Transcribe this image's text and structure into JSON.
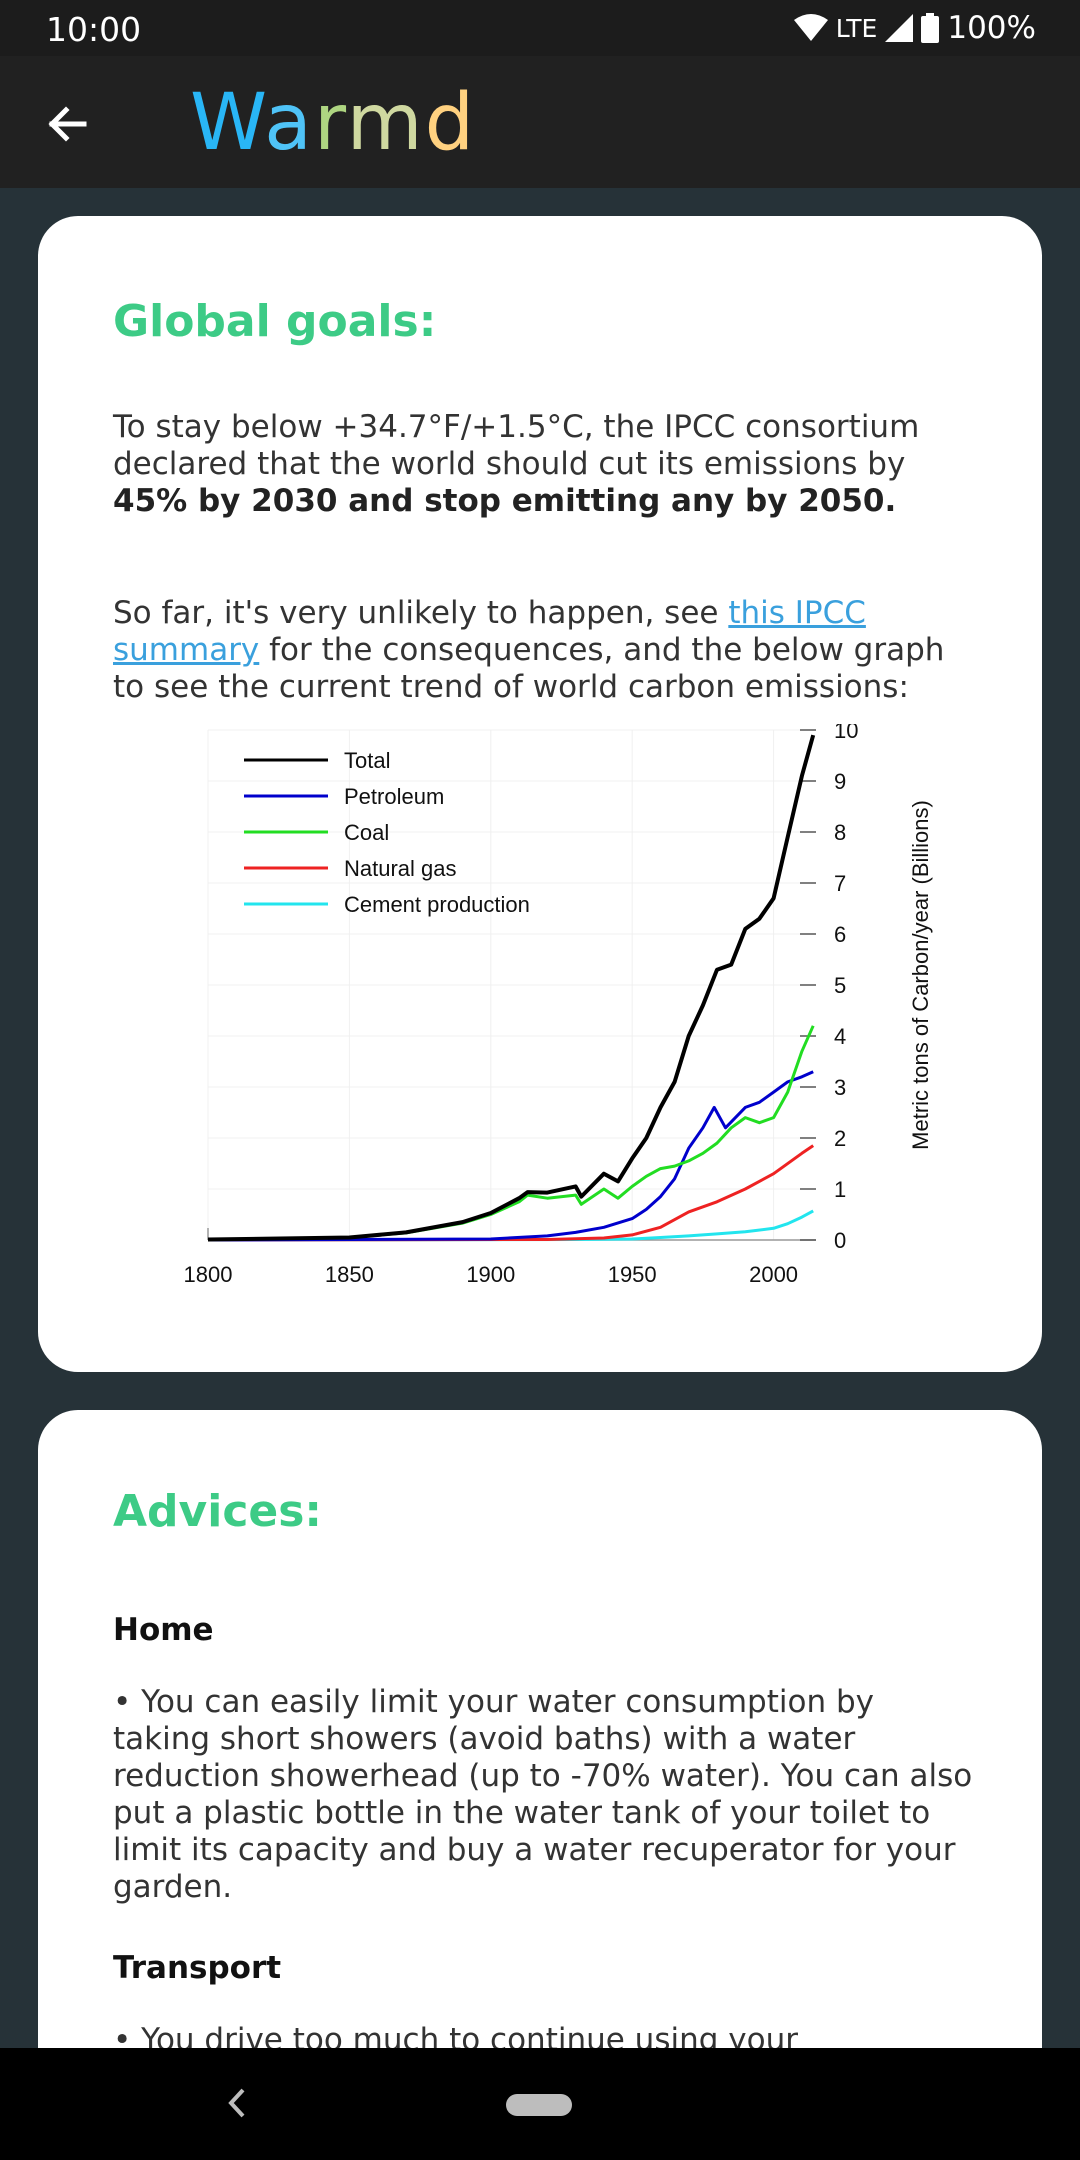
{
  "status_bar": {
    "time": "10:00",
    "network": "LTE",
    "battery": "100%"
  },
  "app_bar": {
    "title_letters": [
      "W",
      "a",
      "r",
      "m",
      "d"
    ],
    "title_colors": [
      "#29b6f6",
      "#4fc3f7",
      "#aed581",
      "#cfd8a0",
      "#ffd180"
    ]
  },
  "goals": {
    "heading": "Global goals:",
    "para1_text": "To stay below +34.7°F/+1.5°C, the IPCC consortium declared that the world should cut its emissions by ",
    "para1_bold": "45% by 2030 and stop emitting any by 2050.",
    "para2_pre": "So far, it's very unlikely to happen, see ",
    "para2_link": "this IPCC summary",
    "para2_post": " for the consequences, and the below graph to see the current trend of world carbon emissions:"
  },
  "chart_data": {
    "type": "line",
    "ylabel": "Metric tons of Carbon/year (Billions)",
    "xlim": [
      1800,
      2015
    ],
    "ylim": [
      0,
      10
    ],
    "x_ticks": [
      1800,
      1850,
      1900,
      1950,
      2000
    ],
    "y_ticks": [
      0,
      1,
      2,
      3,
      4,
      5,
      6,
      7,
      8,
      9,
      10
    ],
    "legend_position": "top-left",
    "series": [
      {
        "name": "Total",
        "color": "#000000",
        "x": [
          1800,
          1850,
          1870,
          1890,
          1900,
          1910,
          1913,
          1920,
          1930,
          1932,
          1940,
          1945,
          1950,
          1955,
          1960,
          1965,
          1970,
          1975,
          1980,
          1985,
          1990,
          1995,
          2000,
          2005,
          2010,
          2014
        ],
        "y": [
          0.01,
          0.05,
          0.15,
          0.35,
          0.53,
          0.82,
          0.94,
          0.93,
          1.05,
          0.85,
          1.3,
          1.15,
          1.6,
          2.0,
          2.6,
          3.1,
          4.0,
          4.6,
          5.3,
          5.4,
          6.1,
          6.3,
          6.7,
          7.9,
          9.1,
          9.9
        ]
      },
      {
        "name": "Petroleum",
        "color": "#0000cc",
        "x": [
          1800,
          1900,
          1920,
          1930,
          1940,
          1950,
          1955,
          1960,
          1965,
          1970,
          1975,
          1979,
          1983,
          1990,
          1995,
          2000,
          2005,
          2010,
          2014
        ],
        "y": [
          0,
          0.02,
          0.08,
          0.15,
          0.25,
          0.42,
          0.6,
          0.85,
          1.2,
          1.8,
          2.2,
          2.6,
          2.2,
          2.6,
          2.7,
          2.9,
          3.1,
          3.2,
          3.3
        ]
      },
      {
        "name": "Coal",
        "color": "#22dd22",
        "x": [
          1800,
          1850,
          1870,
          1890,
          1900,
          1910,
          1913,
          1920,
          1930,
          1932,
          1940,
          1945,
          1950,
          1955,
          1960,
          1965,
          1970,
          1975,
          1980,
          1985,
          1990,
          1995,
          2000,
          2005,
          2010,
          2014
        ],
        "y": [
          0.01,
          0.05,
          0.14,
          0.33,
          0.5,
          0.75,
          0.88,
          0.82,
          0.88,
          0.7,
          1.0,
          0.82,
          1.05,
          1.25,
          1.4,
          1.45,
          1.55,
          1.7,
          1.9,
          2.2,
          2.4,
          2.3,
          2.4,
          2.9,
          3.7,
          4.2
        ]
      },
      {
        "name": "Natural gas",
        "color": "#ee2222",
        "x": [
          1800,
          1920,
          1940,
          1950,
          1960,
          1970,
          1980,
          1990,
          2000,
          2010,
          2014
        ],
        "y": [
          0,
          0.01,
          0.04,
          0.1,
          0.25,
          0.55,
          0.75,
          1.0,
          1.3,
          1.7,
          1.85
        ]
      },
      {
        "name": "Cement production",
        "color": "#22e5ee",
        "x": [
          1800,
          1930,
          1950,
          1960,
          1970,
          1980,
          1990,
          2000,
          2005,
          2010,
          2014
        ],
        "y": [
          0,
          0.01,
          0.02,
          0.05,
          0.08,
          0.12,
          0.16,
          0.23,
          0.32,
          0.45,
          0.57
        ]
      }
    ]
  },
  "advices": {
    "heading": "Advices:",
    "home_title": "Home",
    "home_text": "• You can easily limit your water consumption by taking short showers (avoid baths) with a water reduction showerhead (up to -70% water). You can also put a plastic bottle in the water tank of your toilet to limit its capacity and buy a water recuperator for your garden.",
    "transport_title": "Transport",
    "transport_text": "• You drive too much to continue using your gasoline/diesel"
  }
}
